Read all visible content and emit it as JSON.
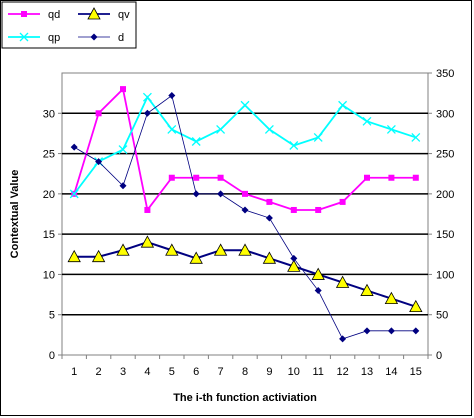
{
  "chart_data": {
    "type": "line",
    "x": [
      1,
      2,
      3,
      4,
      5,
      6,
      7,
      8,
      9,
      10,
      11,
      12,
      13,
      14,
      15
    ],
    "xlabel": "The i-th function activiation",
    "ylabel": "Contextual Value",
    "ylim_left": [
      0,
      35
    ],
    "yticks_left": [
      0,
      5,
      10,
      15,
      20,
      25,
      30
    ],
    "ylim_right": [
      0,
      350
    ],
    "yticks_right": [
      0,
      50,
      100,
      150,
      200,
      250,
      300,
      350
    ],
    "grid": "horizontal",
    "legend_position": "top-left",
    "series": [
      {
        "name": "qd",
        "axis": "left",
        "color": "#ff00ff",
        "marker": "square",
        "values": [
          20,
          30,
          33,
          18,
          22,
          22,
          22,
          20,
          19,
          18,
          18,
          19,
          22,
          22,
          22
        ]
      },
      {
        "name": "qv",
        "axis": "left",
        "color": "#000080",
        "marker": "triangle",
        "marker_fill": "#ffff00",
        "values": [
          12.2,
          12.2,
          13.0,
          14.0,
          13.0,
          12.0,
          13.0,
          13.0,
          12.0,
          11.0,
          10.0,
          9.0,
          8.0,
          7.0,
          6.0
        ]
      },
      {
        "name": "qp",
        "axis": "left",
        "color": "#00ffff",
        "marker": "x",
        "values": [
          20,
          24,
          25.5,
          32,
          28,
          26.5,
          28,
          31,
          28,
          26,
          27,
          31,
          29,
          28,
          27
        ]
      },
      {
        "name": "d",
        "axis": "right",
        "color": "#000080",
        "marker": "diamond",
        "values": [
          258,
          240,
          210,
          300,
          322,
          200,
          200,
          180,
          170,
          120,
          80,
          20,
          30,
          30,
          30
        ]
      }
    ]
  }
}
